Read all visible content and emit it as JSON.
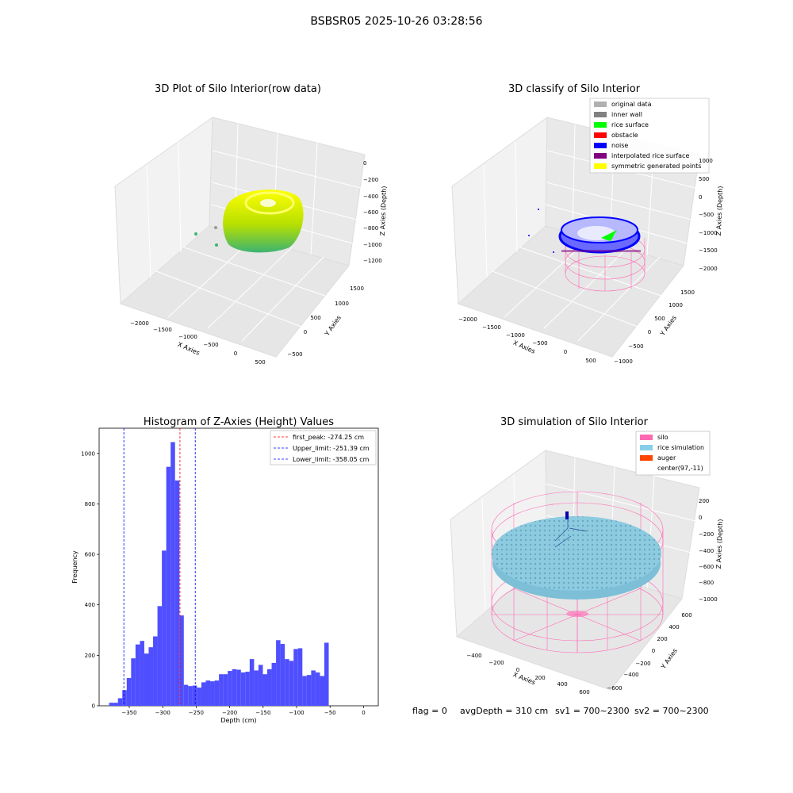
{
  "suptitle": "BSBSR05 2025-10-26 03:28:56",
  "footer": {
    "flag": "flag = 0",
    "avg_depth": "avgDepth = 310 cm",
    "sv1": "sv1 = 700~2300",
    "sv2": "sv2 = 700~2300"
  },
  "colors": {
    "hist_bar": "#4f4fff",
    "peak_line": "#ff0000",
    "limit_line": "#0000ff",
    "rice_surface_gradient": [
      "#ffff00",
      "#3cb371"
    ],
    "silo_wire": "#ff69b4",
    "rice_sim": "#87ceeb",
    "auger": "#ff4500"
  },
  "panels": {
    "row_data": {
      "title": "3D Plot of Silo Interior(row data)",
      "xlabel": "X Axies",
      "ylabel": "Y Axies",
      "zlabel": "Z Axies (Depth)",
      "xticks": [
        "−2000",
        "−1500",
        "−1000",
        "−500",
        "0",
        "500"
      ],
      "yticks": [
        "−500",
        "0",
        "500",
        "1000",
        "1500"
      ],
      "zticks": [
        "0",
        "−200",
        "−400",
        "−600",
        "−800",
        "−1000",
        "−1200"
      ]
    },
    "classify": {
      "title": "3D classify of Silo Interior",
      "xlabel": "X Axies",
      "ylabel": "Y Axies",
      "zlabel": "Z Axies (Depth)",
      "xticks": [
        "−2000",
        "−1500",
        "−1000",
        "−500",
        "0",
        "500"
      ],
      "yticks": [
        "−1000",
        "−500",
        "0",
        "500",
        "1000",
        "1500"
      ],
      "zticks": [
        "1000",
        "500",
        "0",
        "−500",
        "−1000",
        "−1500",
        "−2000"
      ],
      "legend": [
        {
          "label": "original data",
          "color": "#b0b0b0"
        },
        {
          "label": "inner wall",
          "color": "#808080"
        },
        {
          "label": "rice surface",
          "color": "#00ff00"
        },
        {
          "label": "obstacle",
          "color": "#ff0000"
        },
        {
          "label": "noise",
          "color": "#0000ff"
        },
        {
          "label": "interpolated rice surface",
          "color": "#800080"
        },
        {
          "label": "symmetric generated points",
          "color": "#ffff00"
        }
      ]
    },
    "histogram": {
      "title": "Histogram of Z-Axies (Height) Values",
      "xlabel": "Depth (cm)",
      "ylabel": "Frequency",
      "legend": [
        {
          "label": "first_peak: -274.25 cm",
          "color": "#ff0000"
        },
        {
          "label": "Upper_limit: -251.39 cm",
          "color": "#0000ff"
        },
        {
          "label": "Lower_limit: -358.05 cm",
          "color": "#0000ff"
        }
      ]
    },
    "simulation": {
      "title": "3D simulation of Silo Interior",
      "xlabel": "X Axies",
      "ylabel": "Y Axies",
      "zlabel": "Z Axies (Depth)",
      "xticks": [
        "−400",
        "−200",
        "0",
        "200",
        "400",
        "600"
      ],
      "yticks": [
        "−600",
        "−400",
        "−200",
        "0",
        "200",
        "400",
        "600"
      ],
      "zticks": [
        "200",
        "0",
        "−200",
        "−400",
        "−600",
        "−800",
        "−1000"
      ],
      "legend": [
        {
          "label": "silo",
          "color": "#ff69b4"
        },
        {
          "label": "rice simulation",
          "color": "#87ceeb"
        },
        {
          "label": "auger",
          "color": "#ff4500"
        },
        {
          "label": "center(97,-11)",
          "color": "#ffffff"
        }
      ]
    }
  },
  "chart_data": [
    {
      "type": "scatter",
      "title": "3D Plot of Silo Interior(row data)",
      "xlabel": "X Axies",
      "ylabel": "Y Axies",
      "zlabel": "Z Axies (Depth)",
      "xlim": [
        -2300,
        600
      ],
      "ylim": [
        -700,
        1800
      ],
      "zlim": [
        -1300,
        50
      ]
    },
    {
      "type": "scatter",
      "title": "3D classify of Silo Interior",
      "xlabel": "X Axies",
      "ylabel": "Y Axies",
      "zlabel": "Z Axies (Depth)",
      "xlim": [
        -2300,
        600
      ],
      "ylim": [
        -1100,
        1800
      ],
      "zlim": [
        -2000,
        1000
      ],
      "series": [
        {
          "name": "original data"
        },
        {
          "name": "inner wall"
        },
        {
          "name": "rice surface"
        },
        {
          "name": "obstacle"
        },
        {
          "name": "noise"
        },
        {
          "name": "interpolated rice surface"
        },
        {
          "name": "symmetric generated points"
        }
      ]
    },
    {
      "type": "bar",
      "title": "Histogram of Z-Axies (Height) Values",
      "xlabel": "Depth (cm)",
      "ylabel": "Frequency",
      "xlim": [
        -395,
        22
      ],
      "ylim": [
        0,
        1100
      ],
      "xticks": [
        -350,
        -300,
        -250,
        -200,
        -150,
        -100,
        -50,
        0
      ],
      "yticks": [
        0,
        200,
        400,
        600,
        800,
        1000
      ],
      "bin_width": 6.56,
      "bin_starts": [
        -380,
        -373.44,
        -366.88,
        -360.32,
        -353.76,
        -347.2,
        -340.64,
        -334.08,
        -327.52,
        -320.96,
        -314.4,
        -307.84,
        -301.28,
        -294.72,
        -288.16,
        -281.6,
        -275.04,
        -268.48,
        -261.92,
        -255.36,
        -248.8,
        -242.24,
        -235.68,
        -229.12,
        -222.56,
        -216,
        -209.44,
        -202.88,
        -196.32,
        -189.76,
        -183.2,
        -176.64,
        -170.08,
        -163.52,
        -156.96,
        -150.4,
        -143.84,
        -137.28,
        -130.72,
        -124.16,
        -117.6,
        -111.04,
        -104.48,
        -97.92,
        -91.36,
        -84.8,
        -78.24,
        -71.68,
        -65.12,
        -58.56,
        -52,
        -45.44,
        -38.88,
        -32.32,
        -25.76,
        -19.2,
        -12.64,
        -6.08
      ],
      "values": [
        12,
        12,
        30,
        62,
        110,
        188,
        243,
        257,
        207,
        232,
        275,
        395,
        615,
        947,
        1045,
        893,
        358,
        83,
        78,
        80,
        72,
        93,
        100,
        97,
        100,
        125,
        125,
        138,
        145,
        143,
        132,
        135,
        185,
        140,
        162,
        125,
        145,
        170,
        260,
        245,
        185,
        178,
        225,
        228,
        118,
        122,
        140,
        132,
        118,
        250,
        0,
        0,
        0,
        0,
        0,
        0,
        0,
        0
      ],
      "vlines": [
        {
          "name": "first_peak",
          "x": -274.25,
          "color": "#ff0000"
        },
        {
          "name": "Upper_limit",
          "x": -251.39,
          "color": "#0000ff"
        },
        {
          "name": "Lower_limit",
          "x": -358.05,
          "color": "#0000ff"
        }
      ]
    },
    {
      "type": "scatter",
      "title": "3D simulation of Silo Interior",
      "xlabel": "X Axies",
      "ylabel": "Y Axies",
      "zlabel": "Z Axies (Depth)",
      "xlim": [
        -500,
        700
      ],
      "ylim": [
        -700,
        700
      ],
      "zlim": [
        -1100,
        300
      ],
      "center": [
        97,
        -11
      ],
      "series": [
        {
          "name": "silo"
        },
        {
          "name": "rice simulation"
        },
        {
          "name": "auger"
        },
        {
          "name": "center(97,-11)"
        }
      ]
    }
  ]
}
